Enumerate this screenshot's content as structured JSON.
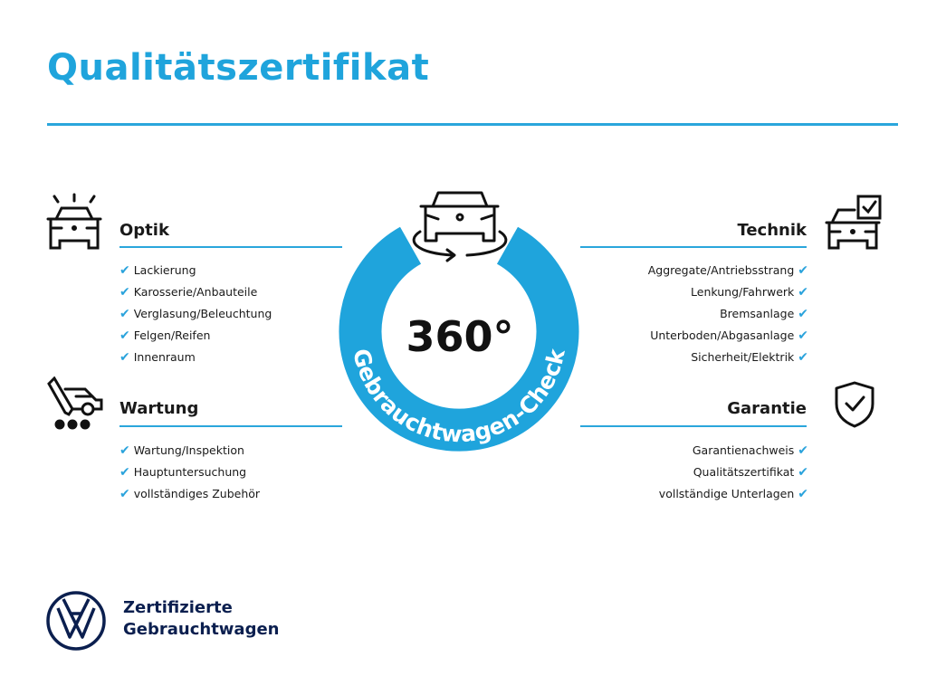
{
  "title": "Qualitätszertifikat",
  "colors": {
    "accent": "#1fa4dc",
    "text": "#1a1a1a",
    "brand_navy": "#0b1f4f"
  },
  "center": {
    "degrees": "360°",
    "ring_text": "Gebrauchtwagen-Check",
    "icon": "car-rotate-icon"
  },
  "sections": {
    "optik": {
      "heading": "Optik",
      "icon": "car-lights-icon",
      "items": [
        "Lackierung",
        "Karosserie/Anbauteile",
        "Verglasung/Beleuchtung",
        "Felgen/Reifen",
        "Innenraum"
      ]
    },
    "wartung": {
      "heading": "Wartung",
      "icon": "service-van-icon",
      "items": [
        "Wartung/Inspektion",
        "Hauptuntersuchung",
        "vollständiges Zubehör"
      ]
    },
    "technik": {
      "heading": "Technik",
      "icon": "car-checklist-icon",
      "items": [
        "Aggregate/Antriebsstrang",
        "Lenkung/Fahrwerk",
        "Bremsanlage",
        "Unterboden/Abgasanlage",
        "Sicherheit/Elektrik"
      ]
    },
    "garantie": {
      "heading": "Garantie",
      "icon": "shield-check-icon",
      "items": [
        "Garantienachweis",
        "Qualitätszertifikat",
        "vollständige Unterlagen"
      ]
    }
  },
  "check_mark": "✔",
  "footer": {
    "line1": "Zertifizierte",
    "line2": "Gebrauchtwagen",
    "logo": "VW"
  }
}
